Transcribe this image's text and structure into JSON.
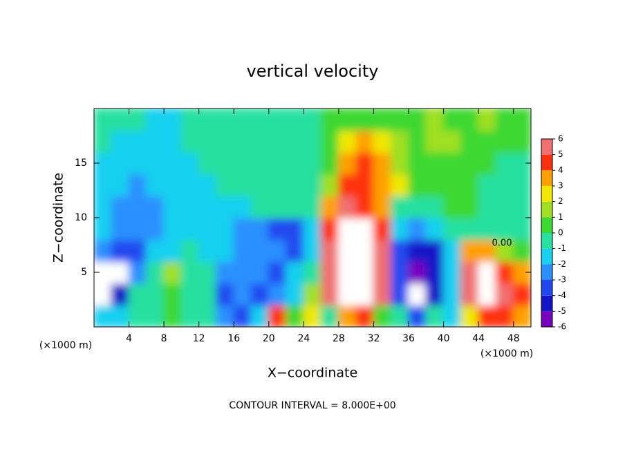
{
  "chart_data": {
    "type": "heatmap",
    "title": "vertical velocity",
    "x_label": "X−coordinate",
    "y_label": "Z−coordinate",
    "x_unit": "(×1000 m)",
    "y_unit": "(×1000 m)",
    "footer": "CONTOUR INTERVAL = 8.000E+00",
    "annotation": "0.00",
    "xlim": [
      0,
      50
    ],
    "ylim": [
      0,
      20
    ],
    "xticks": [
      4,
      8,
      12,
      16,
      20,
      24,
      28,
      32,
      36,
      40,
      44,
      48
    ],
    "yticks": [
      5,
      10,
      15
    ],
    "x": [
      1,
      3,
      5,
      7,
      9,
      11,
      13,
      15,
      17,
      19,
      21,
      23,
      25,
      27,
      29,
      31,
      33,
      35,
      37,
      39,
      41,
      43,
      45,
      47,
      49
    ],
    "y": [
      1,
      3,
      5,
      7,
      9,
      11,
      13,
      15,
      17,
      19
    ],
    "z": [
      [
        -2,
        -1.5,
        -1,
        -0.5,
        0,
        -0.5,
        -1,
        -2.5,
        -4,
        -2,
        4,
        0,
        2.5,
        -0.5,
        3,
        4,
        0,
        -1,
        -4,
        -1,
        -2,
        2,
        4,
        4,
        3
      ],
      [
        -6.5,
        -5,
        -1,
        -0.5,
        0.5,
        -1,
        -1,
        -3.5,
        -3,
        -3.5,
        -3,
        -1.5,
        1.5,
        5,
        7.5,
        7,
        5,
        -4,
        -6.5,
        -5,
        -1.5,
        5,
        7,
        5,
        4
      ],
      [
        -6.5,
        -6.5,
        -3,
        -0.5,
        1.5,
        -0.5,
        -1,
        -2.5,
        -3,
        -2.5,
        -3.5,
        -2,
        -0.5,
        5,
        7.5,
        7.5,
        5,
        -4,
        -6,
        -5,
        -2,
        5,
        7,
        4,
        3
      ],
      [
        -3,
        -4,
        -3.5,
        -2,
        -1.5,
        -1,
        -1.5,
        -2,
        -3,
        -2.5,
        -3,
        -3.5,
        -2,
        5,
        7,
        7,
        5,
        -4,
        -5,
        -4.5,
        -2,
        3.5,
        3,
        1,
        0
      ],
      [
        -2,
        -3,
        -3,
        -2.5,
        -2,
        -1.5,
        -1.5,
        -2,
        -2.5,
        -3,
        -3.5,
        -3.5,
        -2,
        4.5,
        6.5,
        6.5,
        4.5,
        -2,
        -2.5,
        -2,
        -0.5,
        -0.5,
        -0.5,
        -0.5,
        -1
      ],
      [
        -2,
        -2.5,
        -3,
        -2.5,
        -2,
        -1.5,
        -1.5,
        -1.5,
        -1.5,
        -1,
        -1,
        -1,
        -0.5,
        3,
        5.5,
        4.5,
        3,
        -0.5,
        -0.5,
        -0.3,
        0.3,
        0.3,
        -0.5,
        -0.5,
        -1
      ],
      [
        -1.5,
        -2,
        -2.5,
        -2,
        -1.5,
        -1.5,
        -1.5,
        -1,
        -1,
        -1,
        -0.5,
        -0.5,
        -0.3,
        1,
        4,
        4.5,
        3.5,
        2,
        0.3,
        0.3,
        0.5,
        0.3,
        -0.3,
        -0.5,
        -0.5
      ],
      [
        -1.5,
        -1.5,
        -2,
        -2,
        -1.5,
        -1.5,
        -1,
        -1,
        -1,
        -1,
        -0.5,
        -0.5,
        -0.5,
        0.5,
        3,
        4.5,
        3,
        1.5,
        0.5,
        0.8,
        0.8,
        0.5,
        0.3,
        -0.5,
        -0.5
      ],
      [
        -1,
        -1.5,
        -1.5,
        -1.5,
        -1.5,
        -1,
        -1,
        -1,
        -0.5,
        -0.5,
        -0.5,
        -0.5,
        -0.5,
        0.5,
        2,
        3.5,
        2,
        1,
        0.8,
        1,
        1,
        0.8,
        0.8,
        0.5,
        0.5
      ],
      [
        -1,
        -1,
        -1,
        -1.5,
        -1.5,
        -1,
        -1,
        -1,
        -0.5,
        -0.5,
        -0.5,
        -0.5,
        -0.5,
        0.3,
        0.5,
        0.8,
        0.5,
        0.5,
        0.5,
        1,
        0.8,
        0.8,
        1,
        0.8,
        0.5
      ]
    ],
    "clim": [
      -6,
      6
    ],
    "cticks": [
      -6,
      -5,
      -4,
      -3,
      -2,
      -1,
      0,
      1,
      2,
      3,
      4,
      5,
      6
    ],
    "colors": [
      "#7a00c0",
      "#1414c8",
      "#2048f0",
      "#2a90ff",
      "#18d0f0",
      "#28e0a0",
      "#3cd830",
      "#a0e020",
      "#f0e800",
      "#ffa000",
      "#ff3010",
      "#f07070"
    ],
    "out_of_range_color": "#ffffff"
  }
}
